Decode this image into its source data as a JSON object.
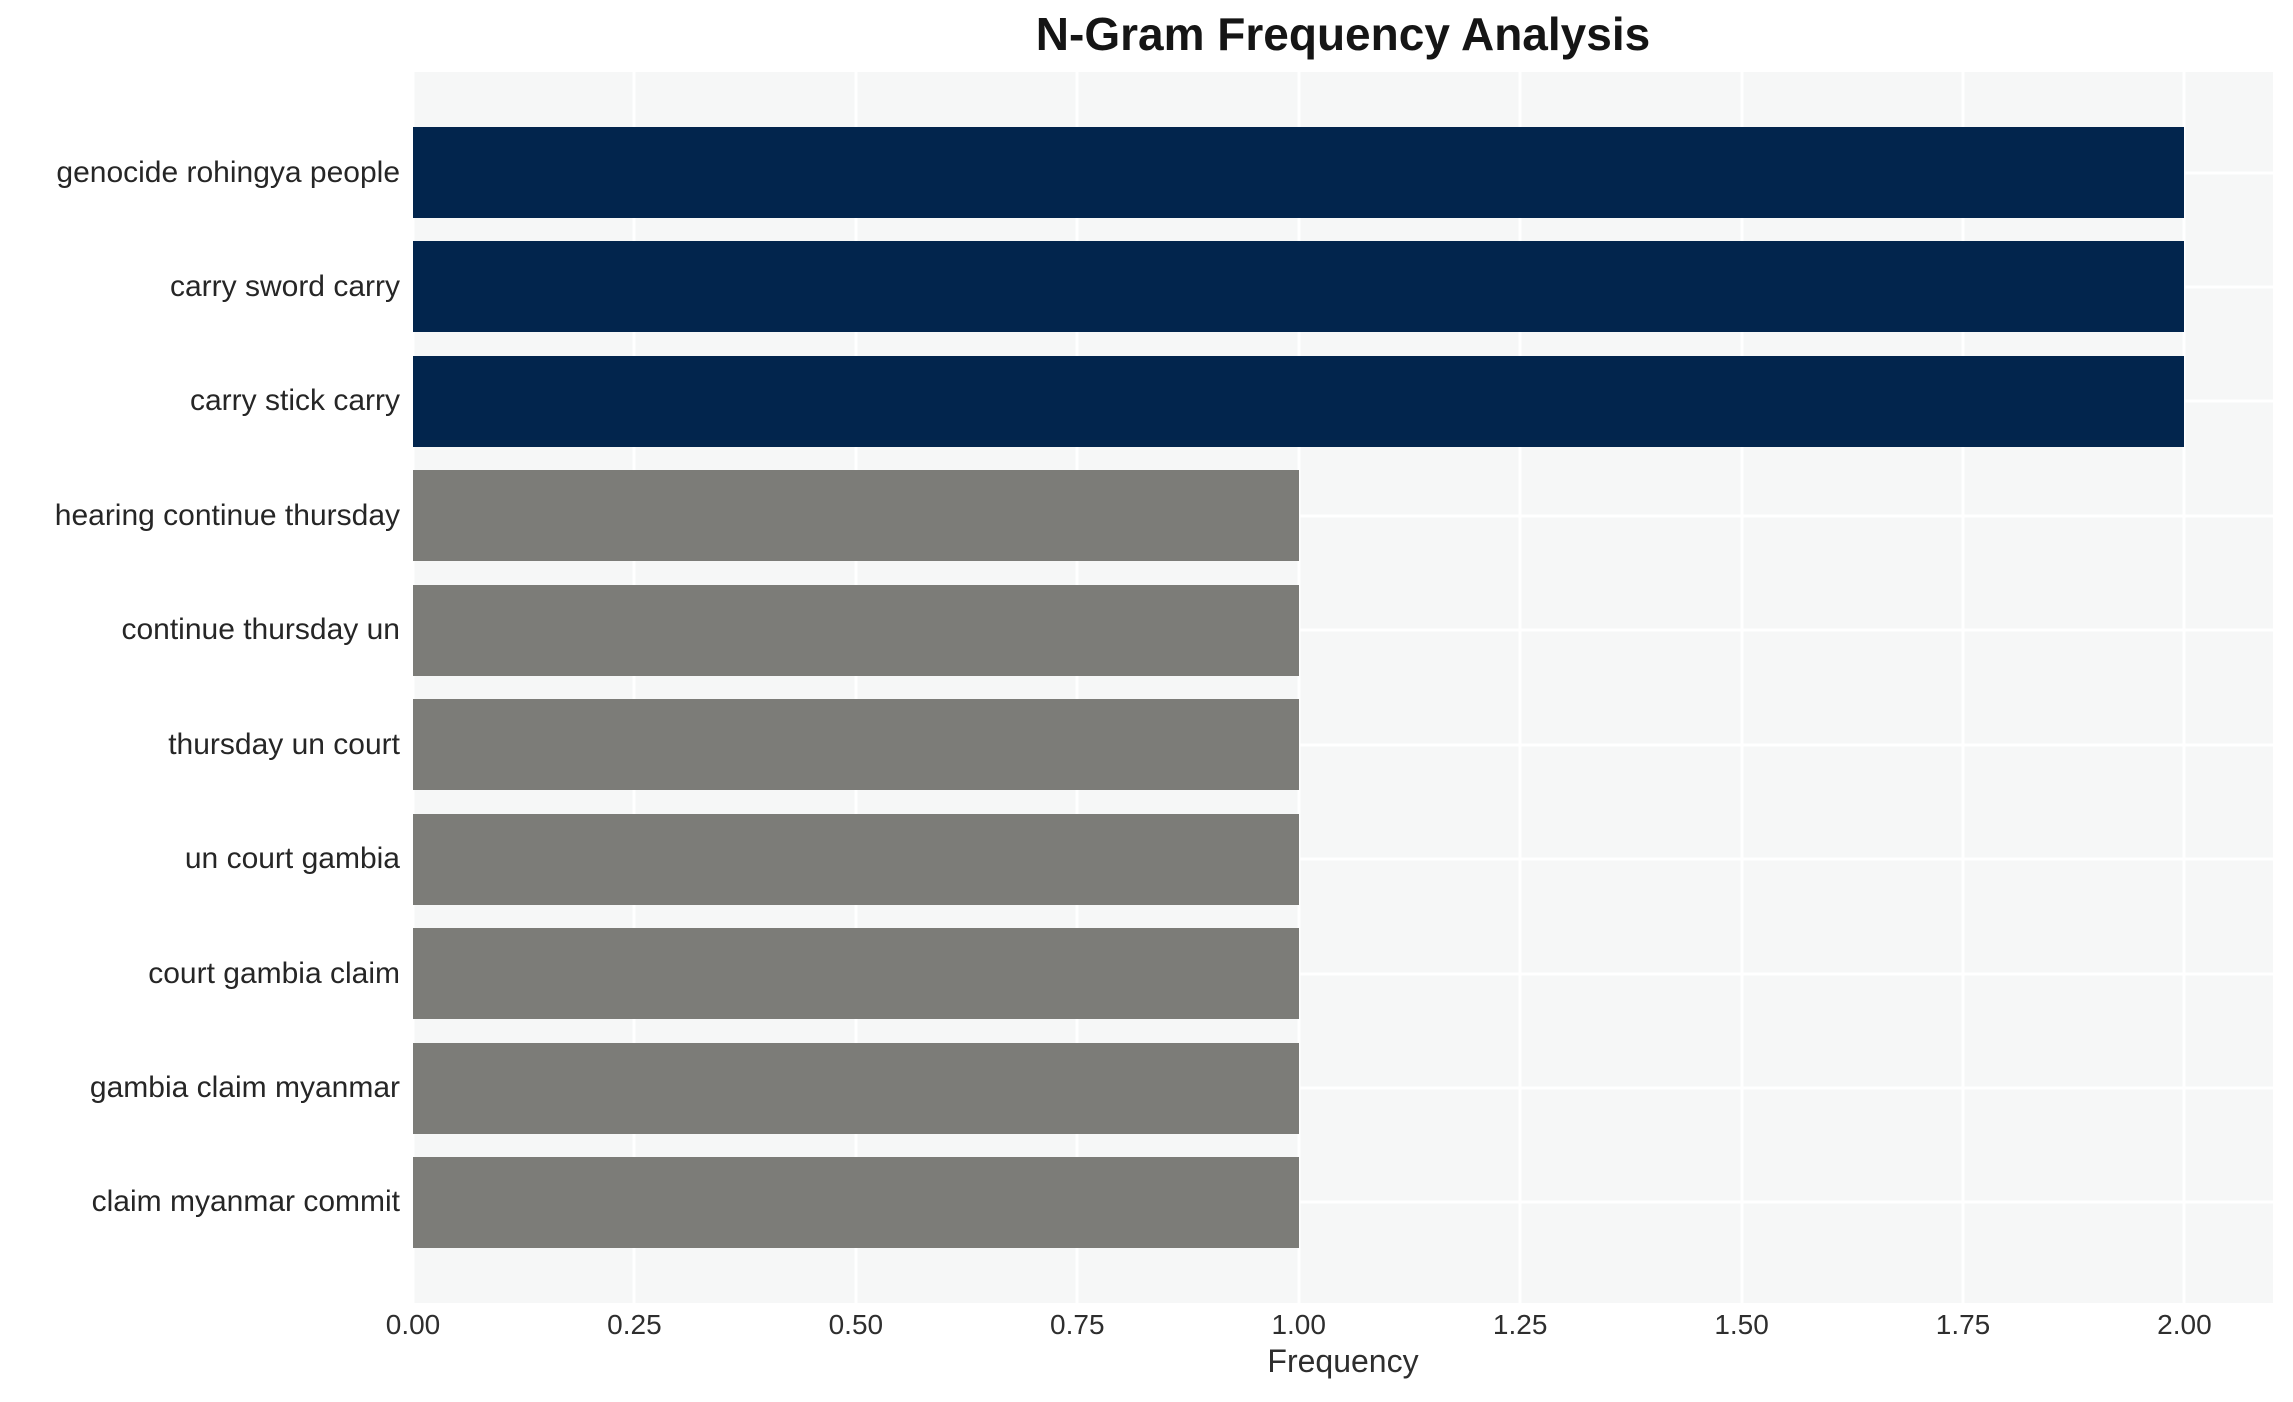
{
  "chart_data": {
    "type": "bar",
    "orientation": "horizontal",
    "title": "N-Gram Frequency Analysis",
    "xlabel": "Frequency",
    "ylabel": "",
    "categories": [
      "genocide rohingya people",
      "carry sword carry",
      "carry stick carry",
      "hearing continue thursday",
      "continue thursday un",
      "thursday un court",
      "un court gambia",
      "court gambia claim",
      "gambia claim myanmar",
      "claim myanmar commit"
    ],
    "values": [
      2,
      2,
      2,
      1,
      1,
      1,
      1,
      1,
      1,
      1
    ],
    "bar_colors": [
      "#02254d",
      "#02254d",
      "#02254d",
      "#7c7c78",
      "#7c7c78",
      "#7c7c78",
      "#7c7c78",
      "#7c7c78",
      "#7c7c78",
      "#7c7c78"
    ],
    "xlim": [
      0,
      2.1
    ],
    "xtick_values": [
      0,
      0.25,
      0.5,
      0.75,
      1.0,
      1.25,
      1.5,
      1.75,
      2.0
    ],
    "xtick_labels": [
      "0.00",
      "0.25",
      "0.50",
      "0.75",
      "1.00",
      "1.25",
      "1.50",
      "1.75",
      "2.00"
    ],
    "grid": true,
    "legend_position": "none",
    "colors": {
      "bar_high": "#02254d",
      "bar_low": "#7c7c78",
      "plot_background": "#f6f7f7",
      "grid_line": "#ffffff",
      "title_text": "#151515",
      "axis_text": "#2e2e2e"
    }
  }
}
